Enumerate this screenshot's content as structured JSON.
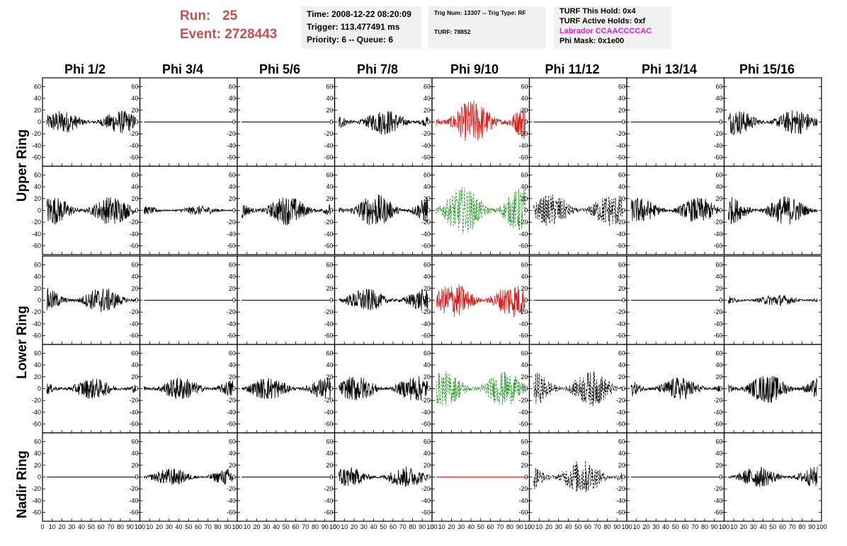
{
  "header": {
    "run_label": "Run:",
    "run_value": "25",
    "event_label": "Event:",
    "event_value": "2728443",
    "time": "Time: 2008-12-22 08:20:09",
    "trigger": "Trigger: 113.477491 ms",
    "priority": "Priority: 6 -- Queue: 6",
    "trig_num": "Trig Num: 13307 -- Trig Type: RF",
    "turf": "TURF: 78852",
    "turf_hold": "TURF This Hold: 0x4",
    "turf_active": "TURF Active Holds: 0xf",
    "labrador": "Labrador CCAACCCCAC",
    "phi_mask": "Phi Mask: 0x1e00"
  },
  "columns": [
    "Phi 1/2",
    "Phi 3/4",
    "Phi 5/6",
    "Phi 7/8",
    "Phi 9/10",
    "Phi 11/12",
    "Phi 13/14",
    "Phi 15/16"
  ],
  "rings": [
    "Upper Ring",
    "Lower Ring",
    "Nadir Ring"
  ],
  "y_ticks": [
    "60",
    "40",
    "20",
    "0",
    "-20",
    "-40",
    "-60"
  ],
  "x_ticks": [
    "0",
    "10",
    "20",
    "30",
    "40",
    "50",
    "60",
    "70",
    "80",
    "90",
    "100"
  ],
  "colors": {
    "run": "#c85050",
    "labrador": "#e020e0",
    "red_trace": "#d02020",
    "green_trace": "#209020",
    "box_bg": "#f0f0f0"
  },
  "chart_data": {
    "type": "line",
    "x_range": [
      0,
      100
    ],
    "y_range": [
      -70,
      70
    ],
    "panels": [
      [
        {
          "style": "solid",
          "color": "black",
          "amp": 20
        },
        {
          "style": "flat",
          "color": "black",
          "amp": 0
        },
        {
          "style": "flat",
          "color": "black",
          "amp": 0
        },
        {
          "style": "solid",
          "color": "black",
          "amp": 22
        },
        {
          "style": "solid",
          "color": "red",
          "amp": 38
        },
        {
          "style": "flat",
          "color": "black",
          "amp": 0
        },
        {
          "style": "flat",
          "color": "black",
          "amp": 0
        },
        {
          "style": "solid",
          "color": "black",
          "amp": 22
        }
      ],
      [
        {
          "style": "solid",
          "color": "black",
          "amp": 25
        },
        {
          "style": "solid",
          "color": "black",
          "amp": 8
        },
        {
          "style": "solid",
          "color": "black",
          "amp": 25
        },
        {
          "style": "solid",
          "color": "black",
          "amp": 28
        },
        {
          "style": "dashed",
          "color": "green",
          "amp": 40
        },
        {
          "style": "dashed",
          "color": "black",
          "amp": 28
        },
        {
          "style": "solid",
          "color": "black",
          "amp": 22
        },
        {
          "style": "solid",
          "color": "black",
          "amp": 25
        }
      ],
      [
        {
          "style": "solid",
          "color": "black",
          "amp": 22
        },
        {
          "style": "flat",
          "color": "black",
          "amp": 0
        },
        {
          "style": "flat",
          "color": "black",
          "amp": 0
        },
        {
          "style": "solid",
          "color": "black",
          "amp": 20
        },
        {
          "style": "solid",
          "color": "red",
          "amp": 30
        },
        {
          "style": "flat",
          "color": "black",
          "amp": 0
        },
        {
          "style": "flat",
          "color": "black",
          "amp": 0
        },
        {
          "style": "solid",
          "color": "black",
          "amp": 10
        }
      ],
      [
        {
          "style": "solid",
          "color": "black",
          "amp": 18
        },
        {
          "style": "solid",
          "color": "black",
          "amp": 20
        },
        {
          "style": "solid",
          "color": "black",
          "amp": 20
        },
        {
          "style": "solid",
          "color": "black",
          "amp": 22
        },
        {
          "style": "dashed",
          "color": "green",
          "amp": 30
        },
        {
          "style": "dashed",
          "color": "black",
          "amp": 30
        },
        {
          "style": "solid",
          "color": "black",
          "amp": 20
        },
        {
          "style": "solid",
          "color": "black",
          "amp": 25
        }
      ],
      [
        {
          "style": "flat",
          "color": "black",
          "amp": 0
        },
        {
          "style": "solid",
          "color": "black",
          "amp": 15
        },
        {
          "style": "flat",
          "color": "black",
          "amp": 0
        },
        {
          "style": "solid",
          "color": "black",
          "amp": 18
        },
        {
          "style": "flat",
          "color": "red",
          "amp": 0
        },
        {
          "style": "dashed",
          "color": "black",
          "amp": 30
        },
        {
          "style": "flat",
          "color": "black",
          "amp": 0
        },
        {
          "style": "solid",
          "color": "black",
          "amp": 18
        }
      ]
    ]
  }
}
